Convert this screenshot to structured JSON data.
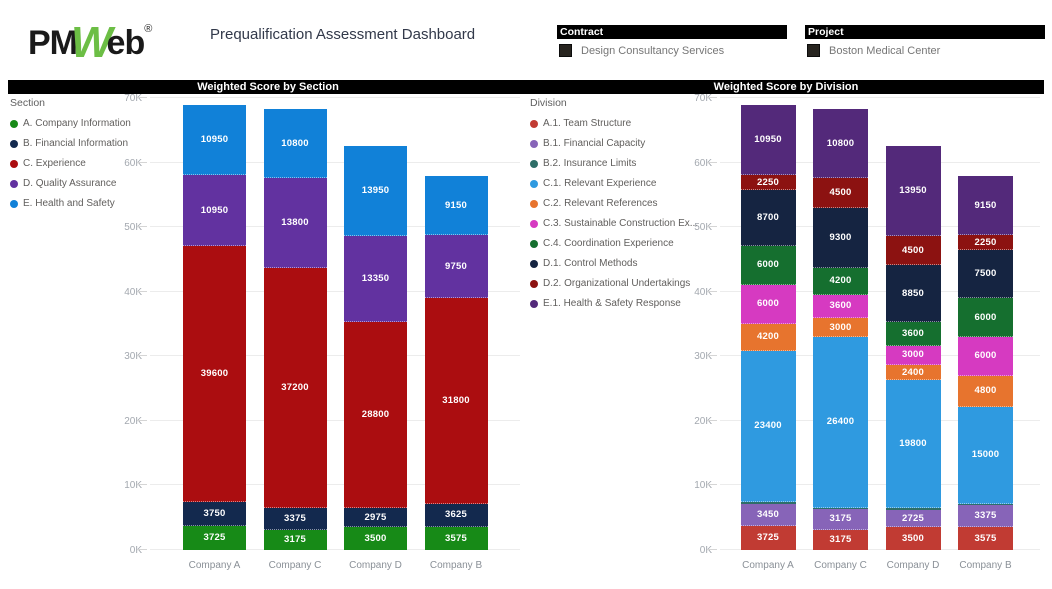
{
  "header": {
    "logo": {
      "part1": "PM",
      "part2": "W",
      "part3": "eb",
      "registered": "®"
    },
    "title": "Prequalification Assessment Dashboard",
    "slicers": [
      {
        "label": "Contract",
        "selected_item": "Design Consultancy Services"
      },
      {
        "label": "Project",
        "selected_item": "Boston Medical Center"
      }
    ]
  },
  "chart_data": [
    {
      "type": "bar",
      "stacked": true,
      "title": "Weighted Score by Section",
      "legend_title": "Section",
      "legend_position": "left",
      "grid": true,
      "categories": [
        "Company A",
        "Company C",
        "Company D",
        "Company B"
      ],
      "ylim": [
        0,
        70000
      ],
      "yticks": [
        "0K",
        "10K",
        "20K",
        "30K",
        "40K",
        "50K",
        "60K",
        "70K"
      ],
      "series": [
        {
          "name": "A. Company Information",
          "color": "#178a17",
          "values": [
            3725,
            3175,
            3500,
            3575
          ]
        },
        {
          "name": "B. Financial Information",
          "color": "#13294e",
          "values": [
            3750,
            3375,
            2975,
            3625
          ]
        },
        {
          "name": "C. Experience",
          "color": "#ab0d10",
          "values": [
            39600,
            37200,
            28800,
            31800
          ]
        },
        {
          "name": "D. Quality Assurance",
          "color": "#6232a0",
          "values": [
            10950,
            13800,
            13350,
            9750
          ]
        },
        {
          "name": "E. Health and Safety",
          "color": "#1181d8",
          "values": [
            10950,
            10800,
            13950,
            9150
          ]
        }
      ]
    },
    {
      "type": "bar",
      "stacked": true,
      "title": "Weighted Score by Division",
      "legend_title": "Division",
      "legend_position": "left",
      "grid": true,
      "categories": [
        "Company A",
        "Company C",
        "Company D",
        "Company B"
      ],
      "ylim": [
        0,
        70000
      ],
      "yticks": [
        "0K",
        "10K",
        "20K",
        "30K",
        "40K",
        "50K",
        "60K",
        "70K"
      ],
      "series": [
        {
          "name": "A.1. Team Structure",
          "color": "#c13b33",
          "values": [
            3725,
            3175,
            3500,
            3575
          ]
        },
        {
          "name": "B.1. Financial Capacity",
          "color": "#8764b8",
          "values": [
            3450,
            3175,
            2725,
            3375
          ]
        },
        {
          "name": "B.2. Insurance Limits",
          "color": "#2e6e68",
          "values": [
            300,
            200,
            250,
            250
          ]
        },
        {
          "name": "C.1. Relevant Experience",
          "color": "#2f9ae0",
          "values": [
            23400,
            26400,
            19800,
            15000
          ]
        },
        {
          "name": "C.2. Relevant References",
          "color": "#e7742e",
          "values": [
            4200,
            3000,
            2400,
            4800
          ]
        },
        {
          "name": "C.3. Sustainable Construction Ex...",
          "color": "#d63ac1",
          "values": [
            6000,
            3600,
            3000,
            6000
          ]
        },
        {
          "name": "C.4. Coordination Experience",
          "color": "#156f2f",
          "values": [
            6000,
            4200,
            3600,
            6000
          ]
        },
        {
          "name": "D.1. Control Methods",
          "color": "#152441",
          "values": [
            8700,
            9300,
            8850,
            7500
          ]
        },
        {
          "name": "D.2. Organizational Undertakings",
          "color": "#8c1211",
          "values": [
            2250,
            4500,
            4500,
            2250
          ]
        },
        {
          "name": "E.1. Health & Safety Response",
          "color": "#53297a",
          "values": [
            10950,
            10800,
            13950,
            9150
          ]
        }
      ]
    }
  ]
}
